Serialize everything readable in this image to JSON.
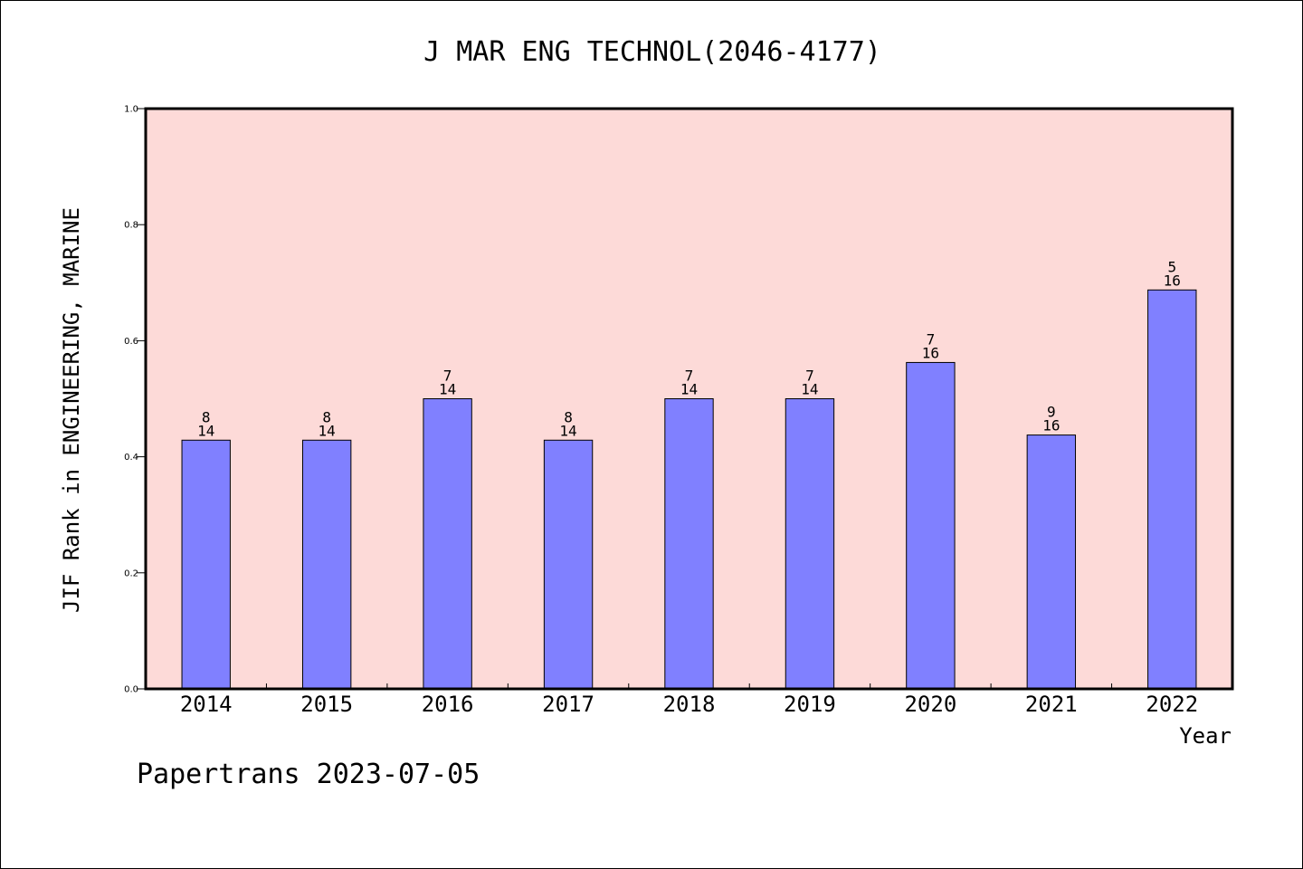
{
  "chart_data": {
    "type": "bar",
    "title": "J MAR ENG TECHNOL(2046-4177)",
    "xlabel": "Year",
    "ylabel": "JIF Rank in ENGINEERING, MARINE",
    "categories": [
      "2014",
      "2015",
      "2016",
      "2017",
      "2018",
      "2019",
      "2020",
      "2021",
      "2022"
    ],
    "ranks": [
      8,
      8,
      7,
      8,
      7,
      7,
      7,
      9,
      5
    ],
    "totals": [
      14,
      14,
      14,
      14,
      14,
      14,
      16,
      16,
      16
    ],
    "values": [
      0.4286,
      0.4286,
      0.5,
      0.4286,
      0.5,
      0.5,
      0.5625,
      0.4375,
      0.6875
    ],
    "ylim": [
      0,
      1.0
    ],
    "yticks": [
      "0.0",
      "0.2",
      "0.4",
      "0.6",
      "0.8",
      "1.0"
    ],
    "grid": false,
    "colors": {
      "plot_background": "#fddad8",
      "bar_fill": "#8080ff",
      "bar_stroke": "#000000"
    }
  },
  "footer": "Papertrans 2023-07-05"
}
